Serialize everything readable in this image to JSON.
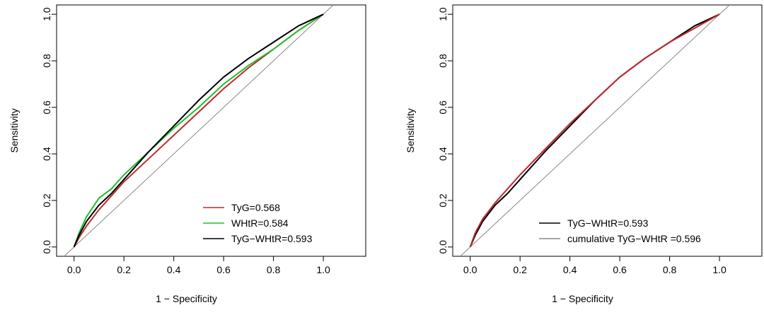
{
  "chart_data": [
    {
      "type": "line",
      "title": "",
      "xlabel": "1 − Specificity",
      "ylabel": "Sensitivity",
      "xlim": [
        -0.07,
        1.17
      ],
      "ylim": [
        -0.04,
        1.04
      ],
      "xticks": [
        0.0,
        0.2,
        0.4,
        0.6,
        0.8,
        1.0
      ],
      "yticks": [
        0.0,
        0.2,
        0.4,
        0.6,
        0.8,
        1.0
      ],
      "xtick_labels": [
        "0.0",
        "0.2",
        "0.4",
        "0.6",
        "0.8",
        "1.0"
      ],
      "ytick_labels": [
        "0.0",
        "0.2",
        "0.4",
        "0.6",
        "0.8",
        "1.0"
      ],
      "legend_position": "bottom-right",
      "reference_line": {
        "x": [
          -0.04,
          1.04
        ],
        "y": [
          -0.04,
          1.04
        ],
        "color": "#888888"
      },
      "series": [
        {
          "name": "TyG=0.568",
          "color": "#c0282e",
          "x": [
            0.0,
            0.02,
            0.05,
            0.1,
            0.15,
            0.2,
            0.3,
            0.4,
            0.5,
            0.6,
            0.7,
            0.8,
            0.9,
            1.0
          ],
          "y": [
            0.0,
            0.04,
            0.09,
            0.16,
            0.22,
            0.28,
            0.38,
            0.48,
            0.58,
            0.68,
            0.77,
            0.85,
            0.93,
            1.0
          ]
        },
        {
          "name": "WHtR=0.584",
          "color": "#1fbf2c",
          "x": [
            0.0,
            0.02,
            0.05,
            0.1,
            0.15,
            0.2,
            0.3,
            0.4,
            0.5,
            0.6,
            0.7,
            0.8,
            0.9,
            1.0
          ],
          "y": [
            0.0,
            0.06,
            0.13,
            0.21,
            0.25,
            0.31,
            0.41,
            0.51,
            0.6,
            0.7,
            0.78,
            0.85,
            0.93,
            1.0
          ]
        },
        {
          "name": "TyG−WHtR=0.593",
          "color": "#000000",
          "x": [
            0.0,
            0.02,
            0.05,
            0.1,
            0.15,
            0.2,
            0.3,
            0.4,
            0.5,
            0.6,
            0.7,
            0.8,
            0.9,
            1.0
          ],
          "y": [
            0.0,
            0.05,
            0.11,
            0.18,
            0.23,
            0.29,
            0.41,
            0.52,
            0.63,
            0.73,
            0.81,
            0.88,
            0.95,
            1.0
          ]
        }
      ]
    },
    {
      "type": "line",
      "title": "",
      "xlabel": "1 − Specificity",
      "ylabel": "Sensitivity",
      "xlim": [
        -0.07,
        1.17
      ],
      "ylim": [
        -0.04,
        1.04
      ],
      "xticks": [
        0.0,
        0.2,
        0.4,
        0.6,
        0.8,
        1.0
      ],
      "yticks": [
        0.0,
        0.2,
        0.4,
        0.6,
        0.8,
        1.0
      ],
      "xtick_labels": [
        "0.0",
        "0.2",
        "0.4",
        "0.6",
        "0.8",
        "1.0"
      ],
      "ytick_labels": [
        "0.0",
        "0.2",
        "0.4",
        "0.6",
        "0.8",
        "1.0"
      ],
      "legend_position": "bottom-right",
      "reference_line": {
        "x": [
          -0.04,
          1.04
        ],
        "y": [
          -0.04,
          1.04
        ],
        "color": "#888888"
      },
      "series": [
        {
          "name": "TyG−WHtR=0.593",
          "color": "#000000",
          "x": [
            0.0,
            0.02,
            0.05,
            0.1,
            0.15,
            0.2,
            0.3,
            0.4,
            0.5,
            0.6,
            0.7,
            0.8,
            0.9,
            1.0
          ],
          "y": [
            0.0,
            0.05,
            0.11,
            0.18,
            0.23,
            0.29,
            0.41,
            0.52,
            0.63,
            0.73,
            0.81,
            0.88,
            0.95,
            1.0
          ]
        },
        {
          "name": "cumulative TyG−WHtR =0.596",
          "color": "#c0282e",
          "legend_color": "#888888",
          "x": [
            0.0,
            0.02,
            0.05,
            0.1,
            0.15,
            0.2,
            0.3,
            0.4,
            0.5,
            0.6,
            0.7,
            0.8,
            0.9,
            1.0
          ],
          "y": [
            0.0,
            0.06,
            0.12,
            0.19,
            0.25,
            0.31,
            0.42,
            0.53,
            0.63,
            0.73,
            0.81,
            0.88,
            0.94,
            1.0
          ]
        }
      ]
    }
  ]
}
